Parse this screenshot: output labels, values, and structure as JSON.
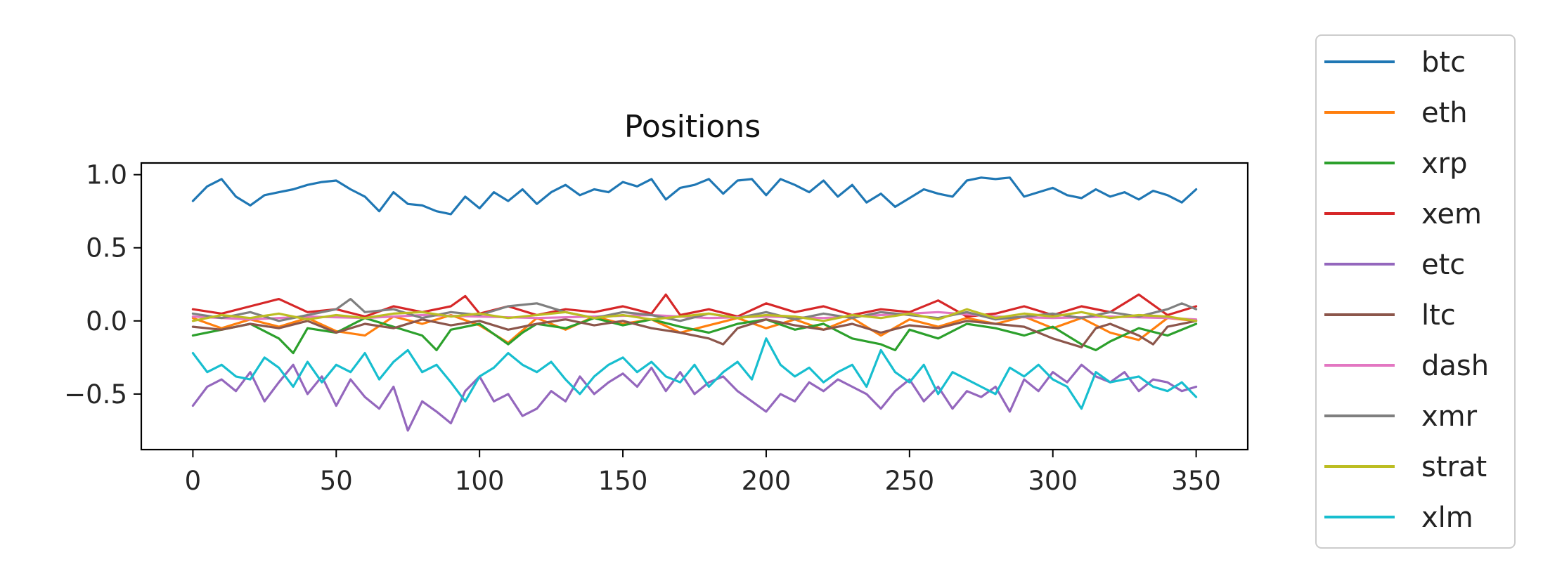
{
  "chart_data": {
    "type": "line",
    "title": "Positions",
    "xlabel": "",
    "ylabel": "",
    "xlim": [
      -18,
      368
    ],
    "ylim": [
      -0.88,
      1.08
    ],
    "xticks": [
      0,
      50,
      100,
      150,
      200,
      250,
      300,
      350
    ],
    "yticks": [
      1.0,
      0.5,
      0.0,
      -0.5
    ],
    "ytick_labels": [
      "1.0",
      "0.5",
      "0.0",
      "−0.5"
    ],
    "grid": false,
    "legend_position": "outside-right",
    "series": [
      {
        "name": "btc",
        "color": "#1f77b4",
        "x": [
          0,
          5,
          10,
          15,
          20,
          25,
          30,
          35,
          40,
          45,
          50,
          55,
          60,
          65,
          70,
          75,
          80,
          85,
          90,
          95,
          100,
          105,
          110,
          115,
          120,
          125,
          130,
          135,
          140,
          145,
          150,
          155,
          160,
          165,
          170,
          175,
          180,
          185,
          190,
          195,
          200,
          205,
          210,
          215,
          220,
          225,
          230,
          235,
          240,
          245,
          250,
          255,
          260,
          265,
          270,
          275,
          280,
          285,
          290,
          295,
          300,
          305,
          310,
          315,
          320,
          325,
          330,
          335,
          340,
          345,
          350
        ],
        "y": [
          0.82,
          0.92,
          0.97,
          0.85,
          0.79,
          0.86,
          0.88,
          0.9,
          0.93,
          0.95,
          0.96,
          0.9,
          0.85,
          0.75,
          0.88,
          0.8,
          0.79,
          0.75,
          0.73,
          0.85,
          0.77,
          0.88,
          0.82,
          0.9,
          0.8,
          0.88,
          0.93,
          0.86,
          0.9,
          0.88,
          0.95,
          0.92,
          0.97,
          0.83,
          0.91,
          0.93,
          0.97,
          0.87,
          0.96,
          0.97,
          0.86,
          0.97,
          0.93,
          0.88,
          0.96,
          0.85,
          0.93,
          0.81,
          0.87,
          0.78,
          0.84,
          0.9,
          0.87,
          0.85,
          0.96,
          0.98,
          0.97,
          0.98,
          0.85,
          0.88,
          0.91,
          0.86,
          0.84,
          0.9,
          0.85,
          0.88,
          0.83,
          0.89,
          0.86,
          0.81,
          0.9
        ]
      },
      {
        "name": "eth",
        "color": "#ff7f0e",
        "x": [
          0,
          10,
          20,
          30,
          40,
          50,
          60,
          70,
          80,
          90,
          100,
          110,
          120,
          130,
          140,
          150,
          160,
          170,
          180,
          190,
          200,
          210,
          220,
          230,
          240,
          250,
          260,
          270,
          280,
          290,
          300,
          310,
          320,
          330,
          340,
          350
        ],
        "y": [
          0.02,
          -0.05,
          0.01,
          -0.04,
          0.02,
          -0.07,
          -0.1,
          0.03,
          -0.02,
          0.04,
          -0.03,
          -0.15,
          0.02,
          -0.06,
          0.03,
          -0.02,
          0.01,
          -0.08,
          -0.03,
          0.02,
          -0.05,
          0.01,
          -0.06,
          0.02,
          -0.1,
          0.01,
          -0.04,
          0.02,
          -0.02,
          0.03,
          -0.05,
          0.02,
          -0.08,
          -0.13,
          0.02,
          0.0
        ]
      },
      {
        "name": "xrp",
        "color": "#2ca02c",
        "x": [
          0,
          10,
          20,
          30,
          35,
          40,
          50,
          60,
          70,
          80,
          85,
          90,
          100,
          110,
          115,
          120,
          130,
          140,
          150,
          160,
          170,
          180,
          190,
          200,
          210,
          220,
          230,
          240,
          245,
          250,
          260,
          270,
          280,
          290,
          300,
          310,
          315,
          320,
          330,
          340,
          350
        ],
        "y": [
          -0.1,
          -0.06,
          -0.02,
          -0.12,
          -0.22,
          -0.05,
          -0.08,
          0.02,
          -0.04,
          -0.1,
          -0.2,
          -0.06,
          -0.02,
          -0.16,
          -0.08,
          -0.02,
          -0.05,
          0.02,
          -0.03,
          0.01,
          -0.04,
          -0.08,
          -0.02,
          0.01,
          -0.06,
          -0.02,
          -0.12,
          -0.16,
          -0.2,
          -0.06,
          -0.12,
          -0.02,
          -0.05,
          -0.1,
          -0.04,
          -0.16,
          -0.2,
          -0.14,
          -0.05,
          -0.1,
          -0.02
        ]
      },
      {
        "name": "xem",
        "color": "#d62728",
        "x": [
          0,
          10,
          20,
          30,
          40,
          50,
          60,
          70,
          80,
          90,
          95,
          100,
          110,
          120,
          130,
          140,
          150,
          160,
          165,
          170,
          180,
          190,
          200,
          210,
          220,
          230,
          240,
          250,
          260,
          270,
          280,
          290,
          300,
          310,
          320,
          330,
          340,
          350
        ],
        "y": [
          0.08,
          0.05,
          0.1,
          0.15,
          0.06,
          0.08,
          0.03,
          0.1,
          0.06,
          0.1,
          0.17,
          0.05,
          0.1,
          0.04,
          0.08,
          0.06,
          0.1,
          0.05,
          0.18,
          0.04,
          0.08,
          0.03,
          0.12,
          0.06,
          0.1,
          0.04,
          0.08,
          0.06,
          0.14,
          0.03,
          0.05,
          0.1,
          0.04,
          0.1,
          0.06,
          0.18,
          0.04,
          0.1
        ]
      },
      {
        "name": "etc",
        "color": "#9467bd",
        "x": [
          0,
          5,
          10,
          15,
          20,
          25,
          30,
          35,
          40,
          45,
          50,
          55,
          60,
          65,
          70,
          75,
          80,
          85,
          90,
          95,
          100,
          105,
          110,
          115,
          120,
          125,
          130,
          135,
          140,
          145,
          150,
          155,
          160,
          165,
          170,
          175,
          180,
          185,
          190,
          195,
          200,
          205,
          210,
          215,
          220,
          225,
          230,
          235,
          240,
          245,
          250,
          255,
          260,
          265,
          270,
          275,
          280,
          285,
          290,
          295,
          300,
          305,
          310,
          315,
          320,
          325,
          330,
          335,
          340,
          345,
          350
        ],
        "y": [
          -0.58,
          -0.45,
          -0.4,
          -0.48,
          -0.35,
          -0.55,
          -0.42,
          -0.3,
          -0.5,
          -0.38,
          -0.58,
          -0.4,
          -0.52,
          -0.6,
          -0.45,
          -0.75,
          -0.55,
          -0.62,
          -0.7,
          -0.48,
          -0.38,
          -0.55,
          -0.5,
          -0.65,
          -0.6,
          -0.48,
          -0.55,
          -0.38,
          -0.5,
          -0.42,
          -0.36,
          -0.45,
          -0.32,
          -0.48,
          -0.35,
          -0.5,
          -0.42,
          -0.38,
          -0.48,
          -0.55,
          -0.62,
          -0.5,
          -0.55,
          -0.42,
          -0.48,
          -0.4,
          -0.45,
          -0.5,
          -0.6,
          -0.48,
          -0.4,
          -0.55,
          -0.45,
          -0.6,
          -0.48,
          -0.52,
          -0.45,
          -0.62,
          -0.4,
          -0.48,
          -0.35,
          -0.42,
          -0.3,
          -0.38,
          -0.42,
          -0.35,
          -0.48,
          -0.4,
          -0.42,
          -0.48,
          -0.45
        ]
      },
      {
        "name": "ltc",
        "color": "#8c564b",
        "x": [
          0,
          10,
          20,
          30,
          40,
          50,
          60,
          70,
          80,
          90,
          100,
          110,
          120,
          130,
          140,
          150,
          160,
          170,
          180,
          185,
          190,
          200,
          210,
          220,
          230,
          240,
          250,
          260,
          270,
          280,
          290,
          300,
          310,
          315,
          320,
          330,
          335,
          340,
          350
        ],
        "y": [
          -0.04,
          -0.06,
          -0.02,
          -0.05,
          0.0,
          -0.08,
          -0.02,
          -0.05,
          0.01,
          -0.03,
          0.0,
          -0.06,
          -0.02,
          0.01,
          -0.03,
          0.0,
          -0.05,
          -0.08,
          -0.12,
          -0.16,
          -0.05,
          0.01,
          -0.03,
          -0.06,
          -0.02,
          -0.08,
          -0.03,
          -0.05,
          0.0,
          -0.02,
          -0.04,
          -0.12,
          -0.18,
          -0.05,
          -0.02,
          -0.1,
          -0.16,
          -0.04,
          0.0
        ]
      },
      {
        "name": "dash",
        "color": "#e377c2",
        "x": [
          0,
          20,
          40,
          60,
          80,
          100,
          120,
          140,
          160,
          180,
          200,
          220,
          240,
          260,
          280,
          300,
          320,
          340,
          350
        ],
        "y": [
          0.03,
          0.01,
          0.03,
          0.02,
          0.04,
          0.03,
          0.02,
          0.03,
          0.04,
          0.02,
          0.03,
          0.02,
          0.04,
          0.06,
          0.03,
          0.02,
          0.03,
          0.02,
          0.01
        ]
      },
      {
        "name": "xmr",
        "color": "#7f7f7f",
        "x": [
          0,
          10,
          20,
          30,
          40,
          50,
          55,
          60,
          70,
          80,
          90,
          100,
          110,
          120,
          130,
          140,
          150,
          160,
          170,
          180,
          190,
          200,
          210,
          220,
          230,
          240,
          250,
          260,
          270,
          280,
          290,
          300,
          310,
          320,
          330,
          340,
          345,
          350
        ],
        "y": [
          0.05,
          0.02,
          0.06,
          0.0,
          0.04,
          0.08,
          0.15,
          0.06,
          0.08,
          0.02,
          0.06,
          0.04,
          0.1,
          0.12,
          0.06,
          0.02,
          0.06,
          0.04,
          0.0,
          0.05,
          0.02,
          0.06,
          0.01,
          0.05,
          0.02,
          0.06,
          0.04,
          0.02,
          0.06,
          0.01,
          0.03,
          0.05,
          0.02,
          0.06,
          0.03,
          0.08,
          0.12,
          0.08
        ]
      },
      {
        "name": "strat",
        "color": "#bcbd22",
        "x": [
          0,
          10,
          20,
          30,
          40,
          50,
          60,
          70,
          80,
          90,
          100,
          110,
          120,
          130,
          140,
          150,
          160,
          170,
          180,
          190,
          200,
          210,
          220,
          230,
          240,
          250,
          260,
          270,
          280,
          290,
          300,
          310,
          320,
          330,
          340,
          350
        ],
        "y": [
          0.0,
          0.04,
          0.02,
          0.05,
          0.01,
          0.04,
          0.02,
          0.05,
          0.06,
          0.03,
          0.05,
          0.02,
          0.04,
          0.06,
          0.02,
          0.04,
          0.01,
          0.03,
          0.05,
          0.02,
          0.04,
          0.03,
          0.0,
          0.04,
          0.02,
          0.05,
          0.01,
          0.08,
          0.02,
          0.05,
          0.03,
          0.06,
          0.02,
          0.04,
          0.03,
          0.0
        ]
      },
      {
        "name": "xlm",
        "color": "#17becf",
        "x": [
          0,
          5,
          10,
          15,
          20,
          25,
          30,
          35,
          40,
          45,
          50,
          55,
          60,
          65,
          70,
          75,
          80,
          85,
          90,
          95,
          100,
          105,
          110,
          115,
          120,
          125,
          130,
          135,
          140,
          145,
          150,
          155,
          160,
          165,
          170,
          175,
          180,
          185,
          190,
          195,
          200,
          205,
          210,
          215,
          220,
          225,
          230,
          235,
          240,
          245,
          250,
          255,
          260,
          265,
          270,
          275,
          280,
          285,
          290,
          295,
          300,
          305,
          310,
          315,
          320,
          325,
          330,
          335,
          340,
          345,
          350
        ],
        "y": [
          -0.22,
          -0.35,
          -0.3,
          -0.38,
          -0.4,
          -0.25,
          -0.32,
          -0.45,
          -0.28,
          -0.42,
          -0.3,
          -0.35,
          -0.22,
          -0.4,
          -0.28,
          -0.2,
          -0.35,
          -0.3,
          -0.42,
          -0.55,
          -0.38,
          -0.32,
          -0.22,
          -0.3,
          -0.35,
          -0.28,
          -0.4,
          -0.5,
          -0.38,
          -0.3,
          -0.25,
          -0.35,
          -0.28,
          -0.38,
          -0.42,
          -0.3,
          -0.45,
          -0.35,
          -0.28,
          -0.4,
          -0.12,
          -0.3,
          -0.38,
          -0.32,
          -0.42,
          -0.35,
          -0.3,
          -0.45,
          -0.2,
          -0.35,
          -0.42,
          -0.3,
          -0.5,
          -0.35,
          -0.4,
          -0.45,
          -0.5,
          -0.32,
          -0.38,
          -0.3,
          -0.4,
          -0.45,
          -0.6,
          -0.35,
          -0.42,
          -0.4,
          -0.38,
          -0.45,
          -0.48,
          -0.42,
          -0.52
        ]
      }
    ]
  }
}
